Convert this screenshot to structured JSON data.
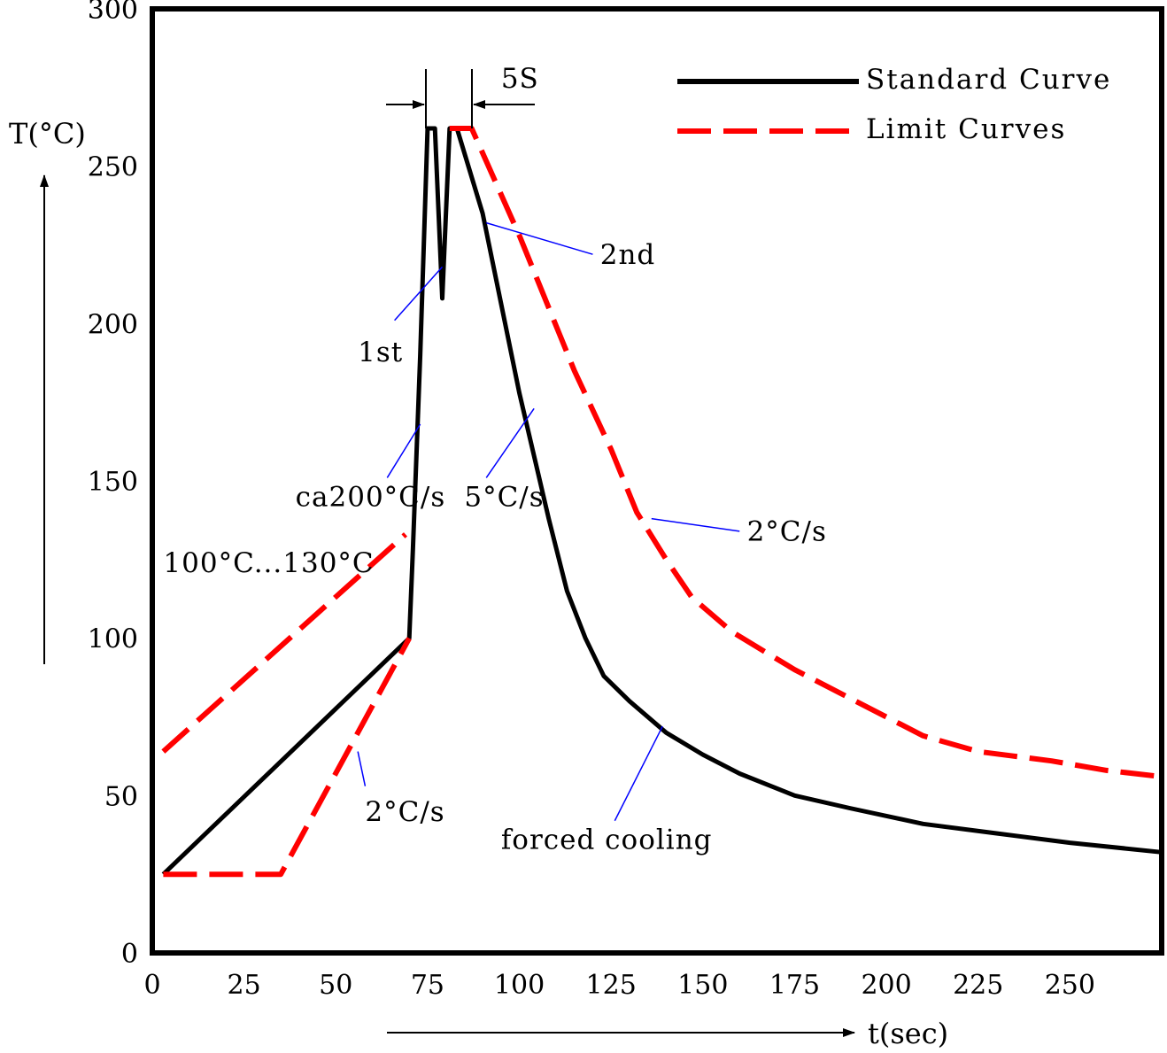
{
  "chart_data": {
    "type": "line",
    "title": "",
    "xlabel": "t(sec)",
    "ylabel": "T(°C)",
    "xlim": [
      0,
      275
    ],
    "ylim": [
      0,
      300
    ],
    "x_ticks": [
      0,
      25,
      50,
      75,
      100,
      125,
      150,
      175,
      200,
      225,
      250
    ],
    "y_ticks": [
      0,
      50,
      100,
      150,
      200,
      250,
      300
    ],
    "grid": false,
    "legend_position": "top-right",
    "series": [
      {
        "name": "Standard Curve",
        "color": "#000000",
        "dash": "solid",
        "points": [
          [
            3,
            25
          ],
          [
            70,
            100
          ],
          [
            71,
            128
          ],
          [
            73,
            190
          ],
          [
            75,
            262
          ],
          [
            77,
            262
          ],
          [
            79,
            208
          ],
          [
            81,
            262
          ],
          [
            83,
            262
          ],
          [
            90,
            235
          ],
          [
            100,
            178
          ],
          [
            108,
            138
          ],
          [
            113,
            115
          ],
          [
            118,
            100
          ],
          [
            123,
            88
          ],
          [
            130,
            80
          ],
          [
            140,
            70
          ],
          [
            150,
            63
          ],
          [
            160,
            57
          ],
          [
            175,
            50
          ],
          [
            190,
            46
          ],
          [
            210,
            41
          ],
          [
            230,
            38
          ],
          [
            250,
            35
          ],
          [
            275,
            32
          ]
        ]
      },
      {
        "name": "Limit Curves",
        "color": "#ff0000",
        "dash": "dashed",
        "points": [
          [
            3,
            64
          ],
          [
            69,
            133
          ]
        ]
      },
      {
        "name": "",
        "color": "#ff0000",
        "dash": "dashed",
        "points": [
          [
            3,
            25
          ],
          [
            35,
            25
          ],
          [
            70,
            100
          ]
        ]
      },
      {
        "name": "",
        "color": "#ff0000",
        "dash": "dashed",
        "points": [
          [
            81,
            262
          ],
          [
            87,
            262
          ],
          [
            100,
            228
          ],
          [
            115,
            185
          ],
          [
            125,
            160
          ],
          [
            132,
            140
          ],
          [
            140,
            125
          ],
          [
            147,
            113
          ],
          [
            158,
            102
          ],
          [
            175,
            90
          ],
          [
            190,
            81
          ],
          [
            210,
            69
          ],
          [
            225,
            64
          ],
          [
            245,
            61
          ],
          [
            260,
            58
          ],
          [
            275,
            56
          ]
        ]
      }
    ],
    "annotations": [
      {
        "text": "1st",
        "x": 56,
        "y": 188,
        "pointer": [
          [
            66,
            201
          ],
          [
            79,
            218
          ]
        ]
      },
      {
        "text": "2nd",
        "x": 122,
        "y": 219,
        "pointer": [
          [
            120,
            222
          ],
          [
            91,
            232
          ]
        ]
      },
      {
        "text": "5S",
        "x": 95,
        "y": 275
      },
      {
        "text": "ca200°C/s",
        "x": 39,
        "y": 142,
        "pointer": [
          [
            64,
            151
          ],
          [
            73,
            168
          ]
        ]
      },
      {
        "text": "5°C/s",
        "x": 85,
        "y": 142,
        "pointer": [
          [
            91,
            151
          ],
          [
            104,
            173
          ]
        ]
      },
      {
        "text": "2°C/s",
        "x": 162,
        "y": 131,
        "pointer": [
          [
            160,
            134
          ],
          [
            136,
            138
          ]
        ]
      },
      {
        "text": "100°C...130°C",
        "x": 3,
        "y": 121
      },
      {
        "text": "2°C/s",
        "x": 58,
        "y": 42,
        "pointer": [
          [
            58,
            53
          ],
          [
            56,
            64
          ]
        ]
      },
      {
        "text": "forced cooling",
        "x": 95,
        "y": 33,
        "pointer": [
          [
            126,
            42
          ],
          [
            139,
            72
          ]
        ]
      }
    ]
  }
}
